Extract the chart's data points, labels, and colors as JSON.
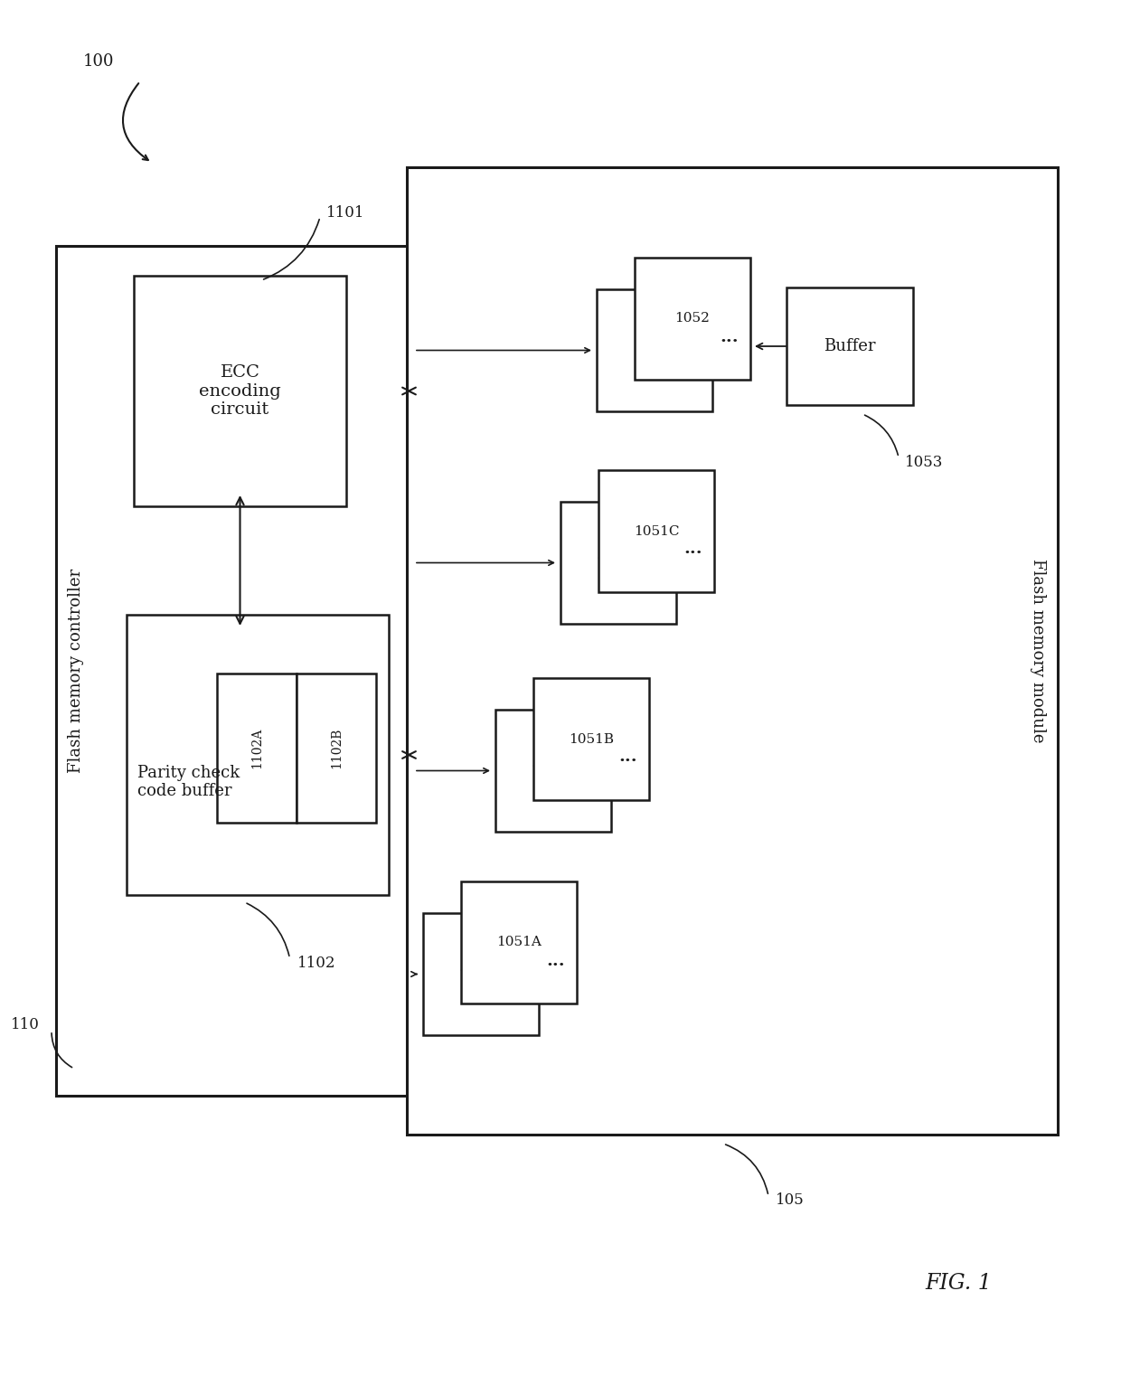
{
  "bg_color": "#ffffff",
  "line_color": "#1a1a1a",
  "fig_label": "FIG. 1",
  "main_label": "100",
  "flash_controller_label": "Flash memory controller",
  "flash_module_label": "Flash memory module",
  "ecc_label": "ECC\nencoding\ncircuit",
  "parity_label": "Parity check\ncode buffer",
  "sub_a_label": "1102A",
  "sub_b_label": "1102B",
  "buffer_label": "Buffer",
  "ref_100": "100",
  "ref_1101": "1101",
  "ref_1102": "1102",
  "ref_110": "110",
  "ref_1053": "1053",
  "ref_105": "105",
  "groups": [
    {
      "front_label": "1051A",
      "back_label": "1051A"
    },
    {
      "front_label": "1051B",
      "back_label": "1051B"
    },
    {
      "front_label": "1051C",
      "back_label": "1051C"
    },
    {
      "front_label": "1052",
      "back_label": "1052"
    }
  ]
}
